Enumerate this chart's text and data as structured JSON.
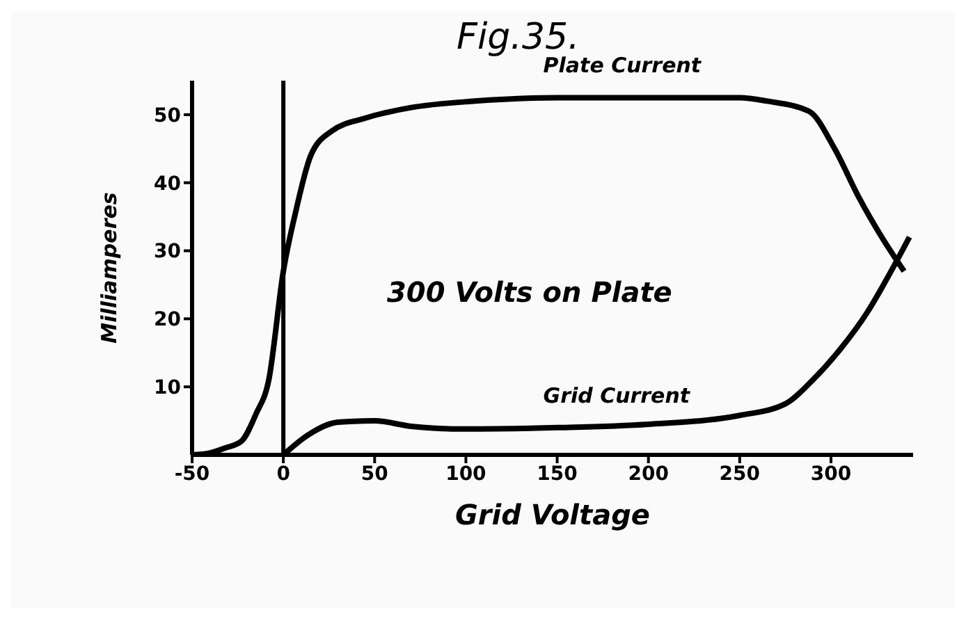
{
  "chart_data": {
    "type": "line",
    "title": "Fig.35.",
    "xlabel": "Grid Voltage",
    "ylabel": "Milliamperes",
    "annotations": [
      "300 Volts on Plate"
    ],
    "xlim": [
      -50,
      345
    ],
    "xticks": [
      -50,
      0,
      50,
      100,
      150,
      200,
      250,
      300
    ],
    "ylim": [
      0,
      55
    ],
    "yticks": [
      10,
      20,
      30,
      40,
      50
    ],
    "grid": false,
    "legend": false,
    "marker": "none",
    "line_style": "solid",
    "ref_lines": [
      {
        "axis": "x",
        "value": 0,
        "color": "#000000"
      }
    ],
    "series": [
      {
        "name": "Plate Current",
        "color": "#000000",
        "x": [
          -50,
          -40,
          -32,
          -23,
          -15,
          -8,
          0,
          7,
          15,
          26,
          45,
          69,
          105,
          150,
          200,
          250,
          265,
          288,
          302,
          315,
          329,
          340
        ],
        "values": [
          0,
          0.3,
          1,
          2,
          6,
          11,
          27,
          36,
          44,
          47.5,
          49.5,
          51,
          52,
          52.5,
          52.5,
          52.5,
          52,
          50.5,
          45,
          38,
          31.5,
          27
        ]
      },
      {
        "name": "Grid Current",
        "color": "#000000",
        "x": [
          0,
          14,
          30,
          50,
          70,
          100,
          150,
          200,
          250,
          275,
          290,
          305,
          320,
          335,
          343
        ],
        "values": [
          0,
          3,
          4.8,
          5,
          4.2,
          3.8,
          4,
          4.5,
          5.8,
          7.5,
          11,
          15.5,
          21,
          28,
          32
        ]
      }
    ]
  }
}
